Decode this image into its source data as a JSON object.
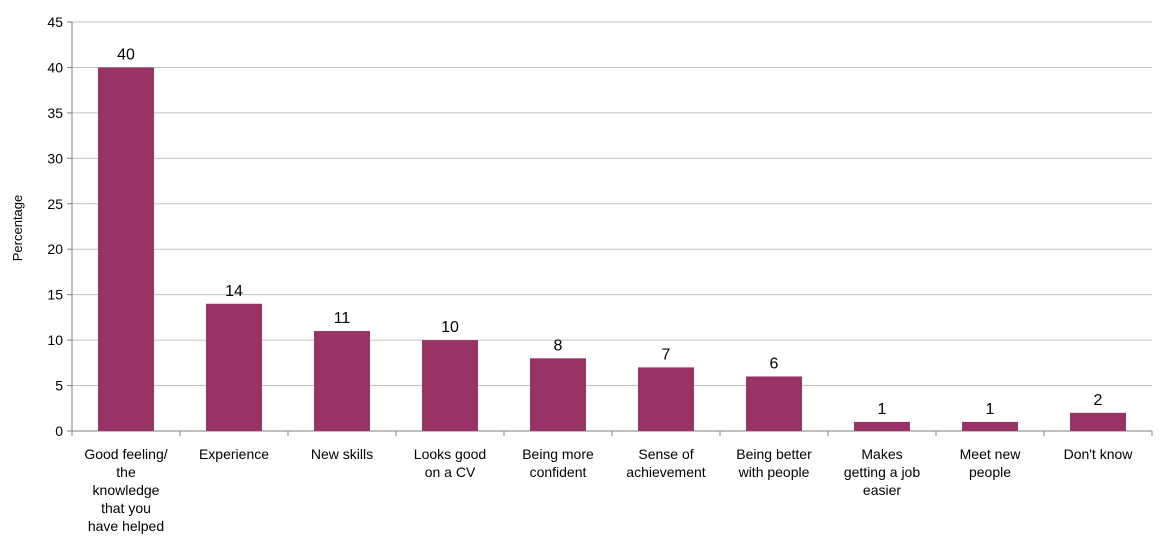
{
  "chart_data": {
    "type": "bar",
    "title": "",
    "xlabel": "",
    "ylabel": "Percentage",
    "ylim": [
      0,
      45
    ],
    "yticks": [
      0,
      5,
      10,
      15,
      20,
      25,
      30,
      35,
      40,
      45
    ],
    "grid": true,
    "legend": "none",
    "bar_color": "#993366",
    "categories": [
      [
        "Good feeling/",
        "the",
        "knowledge",
        "that you",
        "have helped"
      ],
      [
        "Experience"
      ],
      [
        "New  skills"
      ],
      [
        "Looks good",
        "on a CV"
      ],
      [
        "Being more",
        "confident"
      ],
      [
        "Sense of",
        "achievement"
      ],
      [
        "Being better",
        "with people"
      ],
      [
        "Makes",
        "getting a job",
        "easier"
      ],
      [
        "Meet new",
        "people"
      ],
      [
        "Don't know"
      ]
    ],
    "values": [
      40,
      14,
      11,
      10,
      8,
      7,
      6,
      1,
      1,
      2
    ]
  }
}
